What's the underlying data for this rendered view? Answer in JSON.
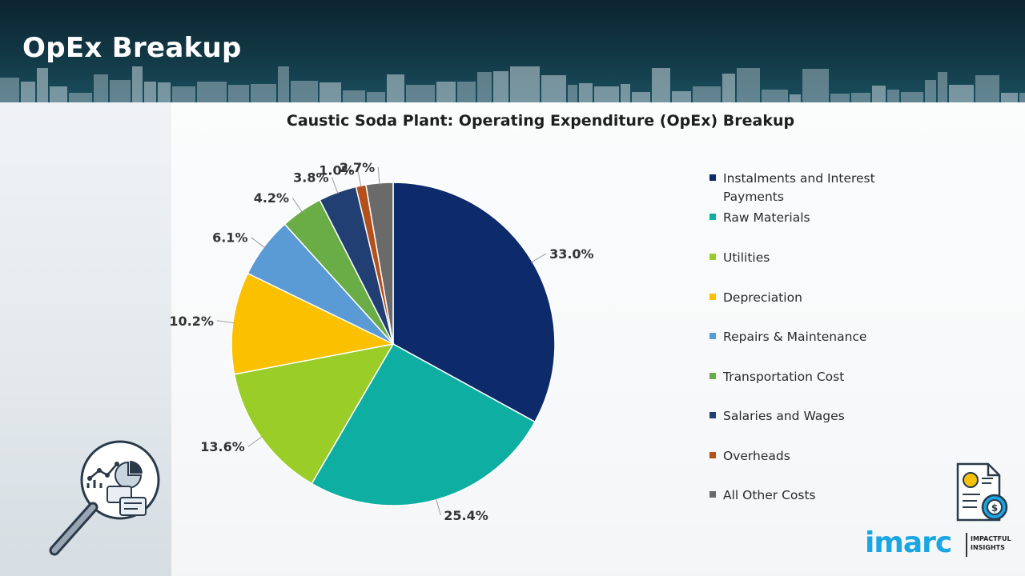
{
  "page": {
    "title": "OpEx Breakup"
  },
  "theme": {
    "header_top": "#0c2431",
    "header_bottom": "#1a4f5e",
    "slice_border": "#ffffff",
    "logo_blue": "#1aa6e2"
  },
  "chart_data": {
    "type": "pie",
    "title": "Caustic Soda Plant: Operating Expenditure (OpEx) Breakup",
    "legend_position": "right",
    "start": "top, clockwise",
    "slices": [
      {
        "label": "Instalments and Interest Payments",
        "value": 33.0,
        "display": "33.0%",
        "color": "#0d2a6b"
      },
      {
        "label": "Raw Materials",
        "value": 25.4,
        "display": "25.4%",
        "color": "#0faea2"
      },
      {
        "label": "Utilities",
        "value": 13.6,
        "display": "13.6%",
        "color": "#9acd28"
      },
      {
        "label": "Depreciation",
        "value": 10.2,
        "display": "10.2%",
        "color": "#fbc100"
      },
      {
        "label": "Repairs & Maintenance",
        "value": 6.1,
        "display": "6.1%",
        "color": "#5b9bd5"
      },
      {
        "label": "Transportation Cost",
        "value": 4.2,
        "display": "4.2%",
        "color": "#6aac46"
      },
      {
        "label": "Salaries and Wages",
        "value": 3.8,
        "display": "3.8%",
        "color": "#213f72"
      },
      {
        "label": "Overheads",
        "value": 1.0,
        "display": "1.0%",
        "color": "#b4501c"
      },
      {
        "label": "All Other Costs",
        "value": 2.7,
        "display": "2.7%",
        "color": "#6a6a6a"
      }
    ]
  },
  "icons": {
    "left": "magnifier-analytics-icon",
    "right": "invoice-dollar-icon"
  },
  "logo": {
    "wordmark": "imarc",
    "tagline": "IMPACTFUL\nINSIGHTS"
  }
}
